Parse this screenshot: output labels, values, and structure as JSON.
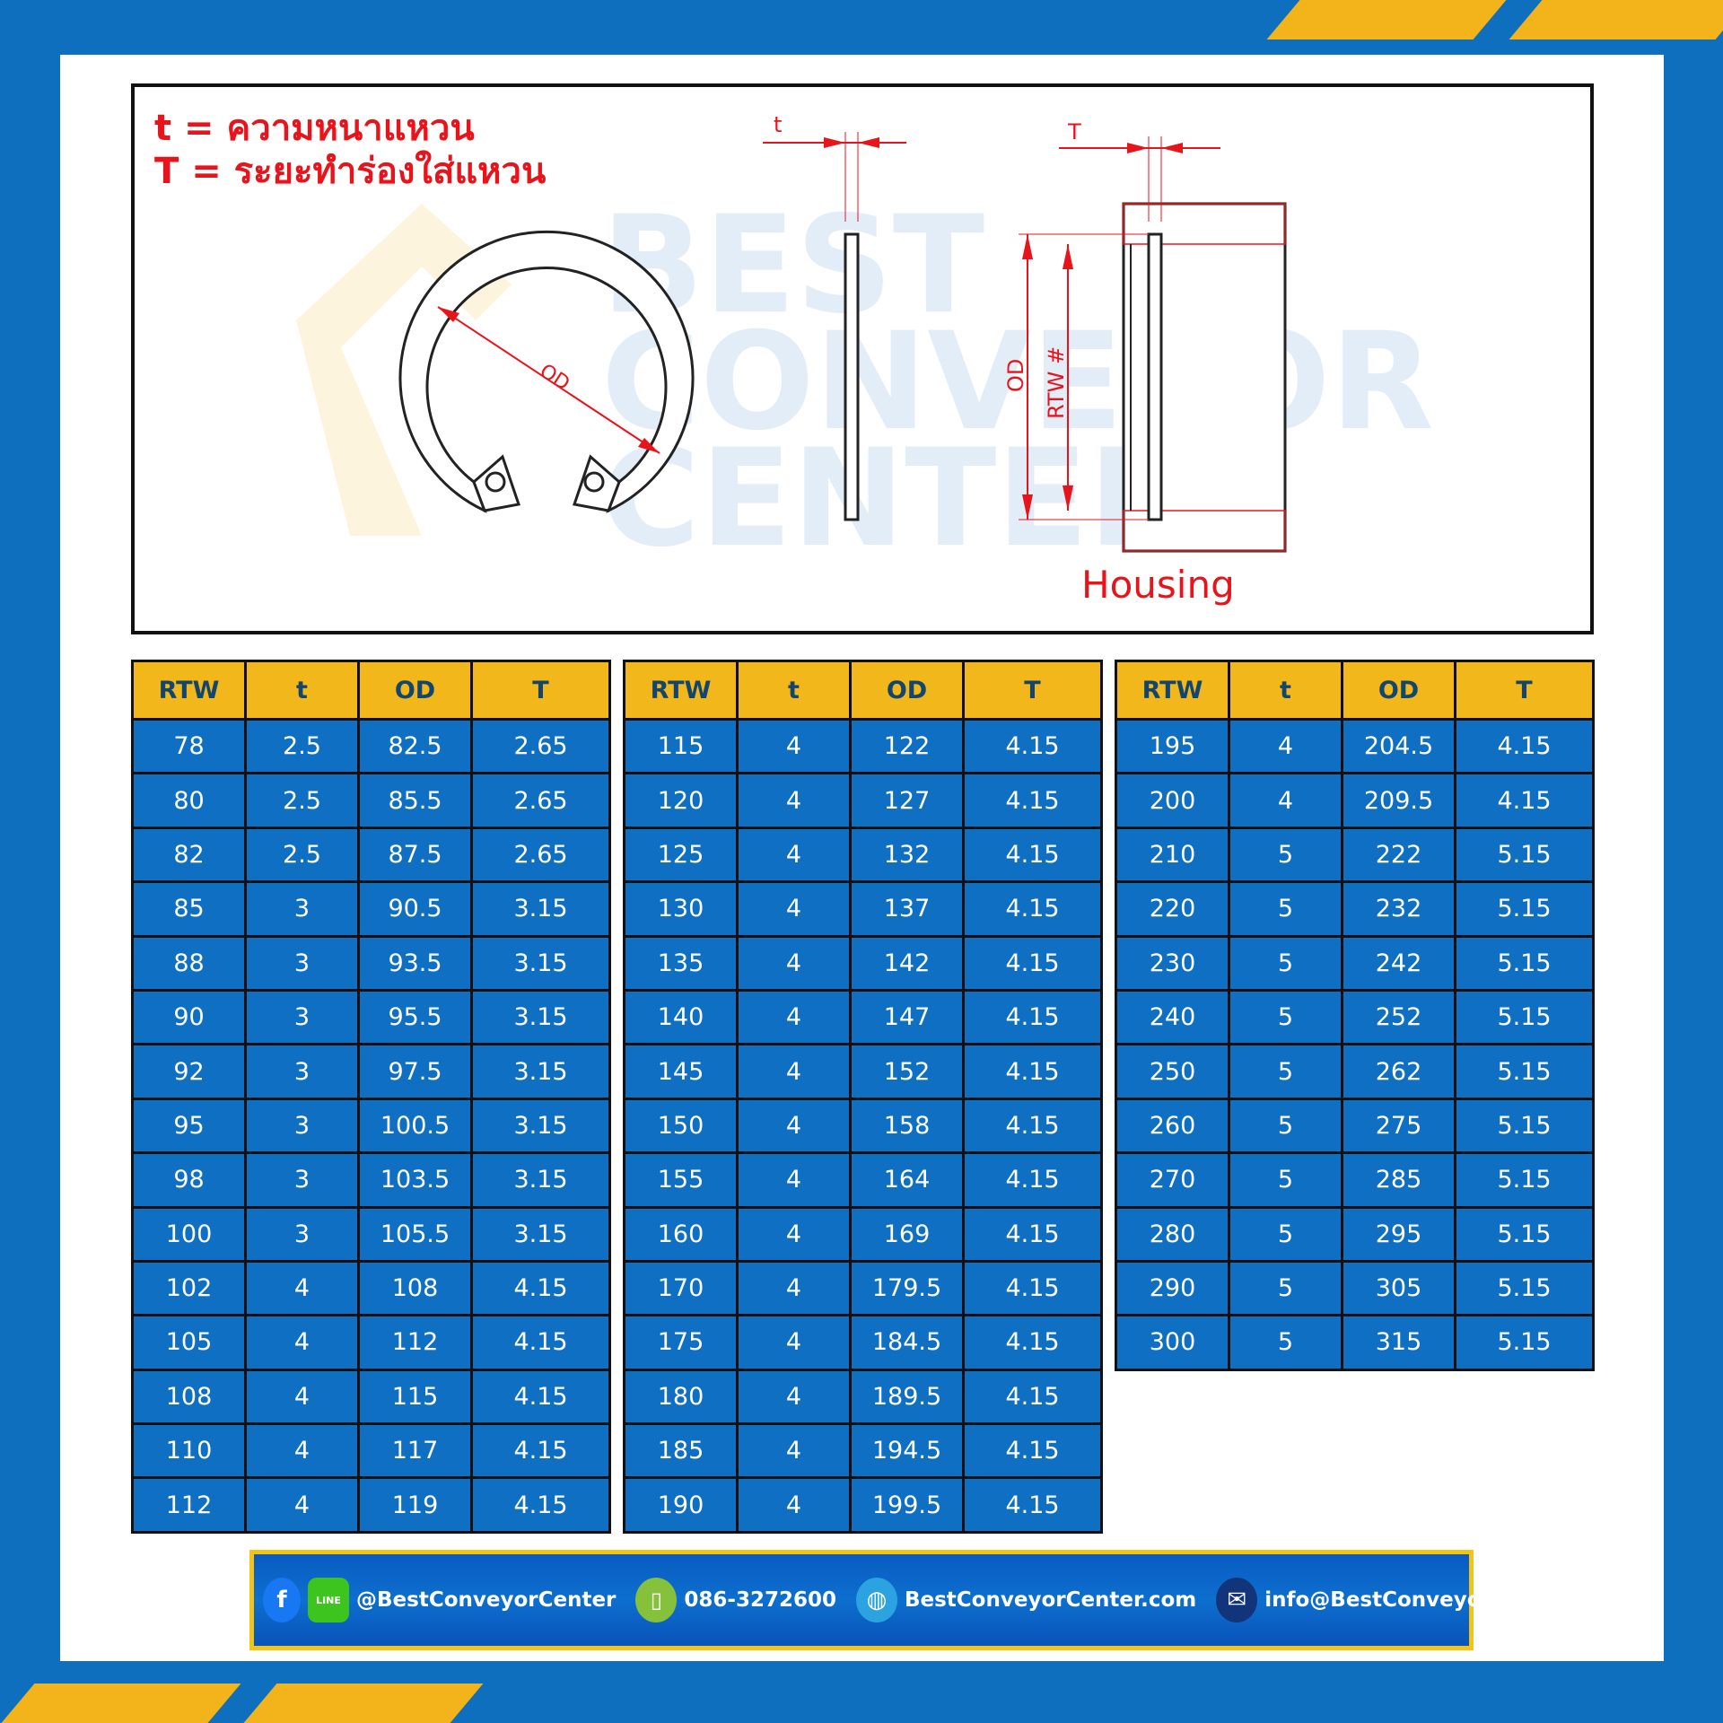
{
  "legend": {
    "t_line": "t = ความหนาแหวน",
    "T_line": "T = ระยะทำร่องใส่แหวน"
  },
  "diagram": {
    "housing_label": "Housing",
    "labels": {
      "od": "OD",
      "rtw": "RTW #",
      "t": "t",
      "T": "T"
    },
    "watermark": "BEST CONVEYOR CENTER"
  },
  "colors": {
    "header": "#f2b71a",
    "cell": "#0e6fc3",
    "frame": "#0e6fbf",
    "accent": "#e8141b"
  },
  "table_headers": [
    "RTW",
    "t",
    "OD",
    "T"
  ],
  "tables": [
    [
      [
        "78",
        "2.5",
        "82.5",
        "2.65"
      ],
      [
        "80",
        "2.5",
        "85.5",
        "2.65"
      ],
      [
        "82",
        "2.5",
        "87.5",
        "2.65"
      ],
      [
        "85",
        "3",
        "90.5",
        "3.15"
      ],
      [
        "88",
        "3",
        "93.5",
        "3.15"
      ],
      [
        "90",
        "3",
        "95.5",
        "3.15"
      ],
      [
        "92",
        "3",
        "97.5",
        "3.15"
      ],
      [
        "95",
        "3",
        "100.5",
        "3.15"
      ],
      [
        "98",
        "3",
        "103.5",
        "3.15"
      ],
      [
        "100",
        "3",
        "105.5",
        "3.15"
      ],
      [
        "102",
        "4",
        "108",
        "4.15"
      ],
      [
        "105",
        "4",
        "112",
        "4.15"
      ],
      [
        "108",
        "4",
        "115",
        "4.15"
      ],
      [
        "110",
        "4",
        "117",
        "4.15"
      ],
      [
        "112",
        "4",
        "119",
        "4.15"
      ]
    ],
    [
      [
        "115",
        "4",
        "122",
        "4.15"
      ],
      [
        "120",
        "4",
        "127",
        "4.15"
      ],
      [
        "125",
        "4",
        "132",
        "4.15"
      ],
      [
        "130",
        "4",
        "137",
        "4.15"
      ],
      [
        "135",
        "4",
        "142",
        "4.15"
      ],
      [
        "140",
        "4",
        "147",
        "4.15"
      ],
      [
        "145",
        "4",
        "152",
        "4.15"
      ],
      [
        "150",
        "4",
        "158",
        "4.15"
      ],
      [
        "155",
        "4",
        "164",
        "4.15"
      ],
      [
        "160",
        "4",
        "169",
        "4.15"
      ],
      [
        "170",
        "4",
        "179.5",
        "4.15"
      ],
      [
        "175",
        "4",
        "184.5",
        "4.15"
      ],
      [
        "180",
        "4",
        "189.5",
        "4.15"
      ],
      [
        "185",
        "4",
        "194.5",
        "4.15"
      ],
      [
        "190",
        "4",
        "199.5",
        "4.15"
      ]
    ],
    [
      [
        "195",
        "4",
        "204.5",
        "4.15"
      ],
      [
        "200",
        "4",
        "209.5",
        "4.15"
      ],
      [
        "210",
        "5",
        "222",
        "5.15"
      ],
      [
        "220",
        "5",
        "232",
        "5.15"
      ],
      [
        "230",
        "5",
        "242",
        "5.15"
      ],
      [
        "240",
        "5",
        "252",
        "5.15"
      ],
      [
        "250",
        "5",
        "262",
        "5.15"
      ],
      [
        "260",
        "5",
        "275",
        "5.15"
      ],
      [
        "270",
        "5",
        "285",
        "5.15"
      ],
      [
        "280",
        "5",
        "295",
        "5.15"
      ],
      [
        "290",
        "5",
        "305",
        "5.15"
      ],
      [
        "300",
        "5",
        "315",
        "5.15"
      ]
    ]
  ],
  "footer": {
    "social": "@BestConveyorCenter",
    "phone": "086-3272600",
    "website": "BestConveyorCenter.com",
    "email": "info@BestConveyorCenter.com",
    "line_badge": "LINE"
  }
}
